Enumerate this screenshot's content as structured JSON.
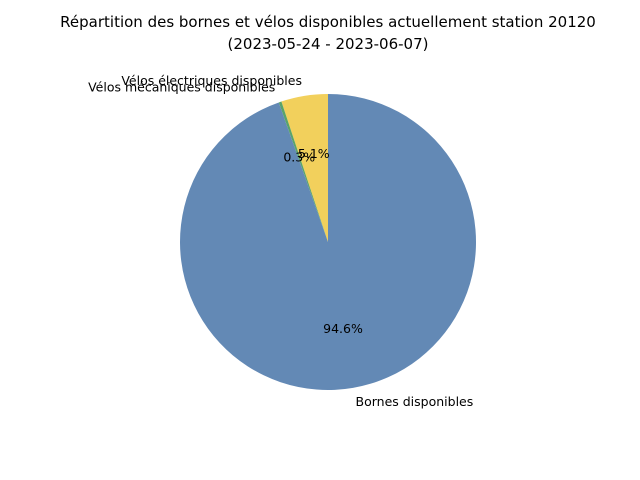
{
  "chart_data": {
    "type": "pie",
    "title_line1": "Répartition des bornes et vélos disponibles actuellement station 20120",
    "title_line2": "(2023-05-24 - 2023-06-07)",
    "start_angle_deg": 90,
    "direction": "counterclockwise",
    "slices": [
      {
        "label": "Vélos électriques disponibles",
        "value": 5.1,
        "pct_text": "5.1%",
        "color": "#f2d05c"
      },
      {
        "label": "Vélos mécaniques disponibles",
        "value": 0.3,
        "pct_text": "0.3%",
        "color": "#5aa36a"
      },
      {
        "label": "Bornes disponibles",
        "value": 94.6,
        "pct_text": "94.6%",
        "color": "#6389b5"
      }
    ]
  }
}
